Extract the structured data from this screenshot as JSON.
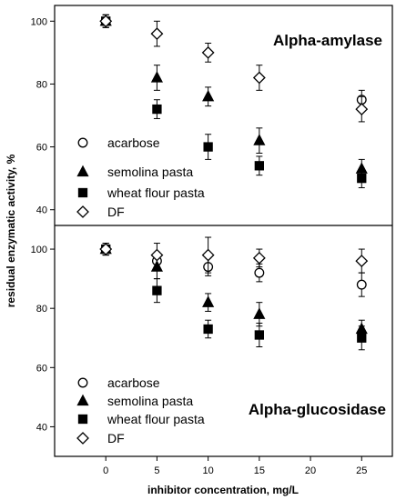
{
  "chart_data": {
    "type": "scatter",
    "xlabel": "inhibitor concentration, mg/L",
    "ylabel": "residual enzymatic activity, %",
    "xlim": [
      -5,
      28
    ],
    "x_ticks": [
      0,
      5,
      10,
      15,
      20,
      25
    ],
    "panels": [
      {
        "title": "Alpha-amylase",
        "ylim": [
          35,
          105
        ],
        "y_ticks": [
          40,
          60,
          80,
          100
        ],
        "legend_placement": "bottom-left",
        "series": [
          {
            "name": "acarbose",
            "marker": "open-circle",
            "x": [
              0,
              25
            ],
            "y": [
              100,
              75
            ],
            "err": [
              2,
              3
            ]
          },
          {
            "name": "semolina pasta",
            "marker": "filled-triangle",
            "x": [
              0,
              5,
              10,
              15,
              25
            ],
            "y": [
              100,
              82,
              76,
              62,
              53
            ],
            "err": [
              2,
              4,
              3,
              4,
              3
            ]
          },
          {
            "name": "wheat flour pasta",
            "marker": "filled-square",
            "x": [
              0,
              5,
              10,
              15,
              25
            ],
            "y": [
              100,
              72,
              60,
              54,
              50
            ],
            "err": [
              2,
              3,
              4,
              3,
              3
            ]
          },
          {
            "name": "DF",
            "marker": "open-diamond",
            "x": [
              0,
              5,
              10,
              15,
              25
            ],
            "y": [
              100,
              96,
              90,
              82,
              72
            ],
            "err": [
              2,
              4,
              3,
              4,
              4
            ]
          }
        ]
      },
      {
        "title": "Alpha-glucosidase",
        "ylim": [
          30,
          108
        ],
        "y_ticks": [
          40,
          60,
          80,
          100
        ],
        "legend_placement": "bottom-left",
        "series": [
          {
            "name": "acarbose",
            "marker": "open-circle",
            "x": [
              0,
              5,
              10,
              15,
              25
            ],
            "y": [
              100,
              96,
              94,
              92,
              88
            ],
            "err": [
              2,
              3,
              3,
              3,
              4
            ]
          },
          {
            "name": "semolina pasta",
            "marker": "filled-triangle",
            "x": [
              0,
              5,
              10,
              15,
              25
            ],
            "y": [
              100,
              94,
              82,
              78,
              73
            ],
            "err": [
              2,
              4,
              3,
              4,
              3
            ]
          },
          {
            "name": "wheat flour pasta",
            "marker": "filled-square",
            "x": [
              0,
              5,
              10,
              15,
              25
            ],
            "y": [
              100,
              86,
              73,
              71,
              70
            ],
            "err": [
              2,
              4,
              3,
              4,
              4
            ]
          },
          {
            "name": "DF",
            "marker": "open-diamond",
            "x": [
              0,
              5,
              10,
              15,
              25
            ],
            "y": [
              100,
              98,
              98,
              97,
              96
            ],
            "err": [
              2,
              4,
              6,
              3,
              4
            ]
          }
        ]
      }
    ]
  }
}
